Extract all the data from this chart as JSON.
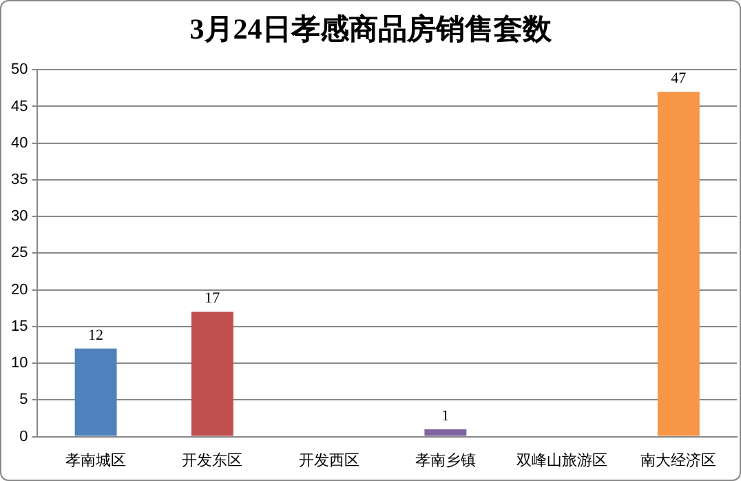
{
  "chart_data": {
    "type": "bar",
    "title": "3月24日孝感商品房销售套数",
    "categories": [
      "孝南城区",
      "开发东区",
      "开发西区",
      "孝南乡镇",
      "双峰山旅游区",
      "南大经济区"
    ],
    "values": [
      12,
      17,
      0,
      1,
      0,
      47
    ],
    "colors": [
      "#4f81bd",
      "#c0504d",
      "#9bbb59",
      "#8064a2",
      "#4bacc6",
      "#f79646"
    ],
    "value_labels": [
      "12",
      "17",
      null,
      "1",
      null,
      "47"
    ],
    "ylim": [
      0,
      50
    ],
    "yticks": [
      0,
      5,
      10,
      15,
      20,
      25,
      30,
      35,
      40,
      45,
      50
    ],
    "grid": "y",
    "legend": false
  }
}
